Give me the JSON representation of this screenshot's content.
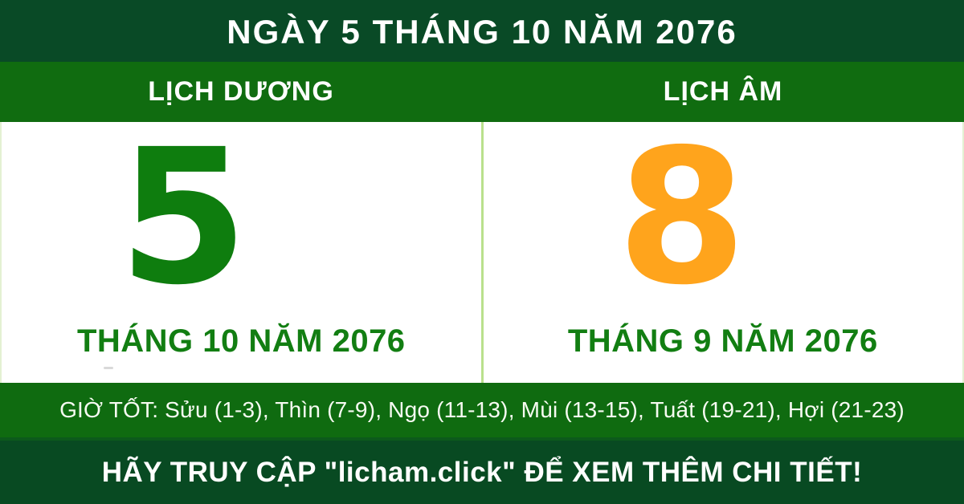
{
  "banner_title": "NGÀY 5 THÁNG 10 NĂM 2076",
  "calendar": {
    "solar": {
      "header": "LỊCH DƯƠNG",
      "day": "5",
      "month_year": "THÁNG 10 NĂM 2076",
      "day_color": "#0e7d0e"
    },
    "lunar": {
      "header": "LỊCH ÂM",
      "day": "8",
      "month_year": "THÁNG 9 NĂM 2076",
      "day_color": "#ffa41c"
    }
  },
  "good_hours": {
    "text": "GIỜ TỐT: Sửu (1-3), Thìn (7-9), Ngọ (11-13), Mùi (13-15), Tuất (19-21), Hợi (21-23)"
  },
  "footer": {
    "cta": "HÃY TRUY CẬP \"licham.click\" ĐỂ XEM THÊM CHI TIẾT!"
  },
  "colors": {
    "dark_green": "#084a24",
    "medium_green": "#106c10",
    "label_green": "#127e12",
    "lunar_orange": "#ffa41c",
    "divider_light_green": "#b9e08d",
    "text_white": "#ffffff"
  }
}
